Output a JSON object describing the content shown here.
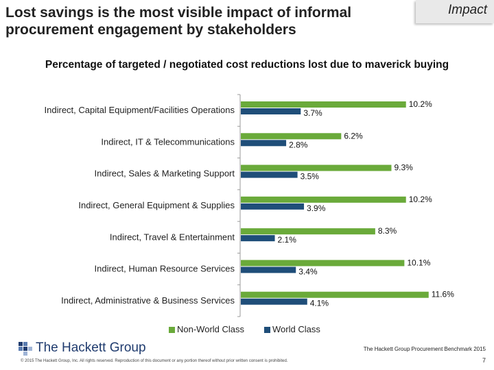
{
  "header": {
    "title": "Lost savings is the most visible impact of informal procurement engagement by stakeholders",
    "badge": "Impact"
  },
  "chart_data": {
    "type": "bar",
    "title": "Percentage of targeted / negotiated cost reductions lost due to maverick buying",
    "categories": [
      "Indirect, Capital Equipment/Facilities Operations",
      "Indirect, IT & Telecommunications",
      "Indirect, Sales & Marketing Support",
      "Indirect, General Equipment & Supplies",
      "Indirect, Travel & Entertainment",
      "Indirect, Human Resource Services",
      "Indirect, Administrative & Business Services"
    ],
    "series": [
      {
        "name": "Non-World Class",
        "color": "#6aaa3a",
        "values": [
          10.2,
          6.2,
          9.3,
          10.2,
          8.3,
          10.1,
          11.6
        ],
        "labels": [
          "10.2%",
          "6.2%",
          "9.3%",
          "10.2%",
          "8.3%",
          "10.1%",
          "11.6%"
        ]
      },
      {
        "name": "World Class",
        "color": "#1f4e79",
        "values": [
          3.7,
          2.8,
          3.5,
          3.9,
          2.1,
          3.4,
          4.1
        ],
        "labels": [
          "3.7%",
          "2.8%",
          "3.5%",
          "3.9%",
          "2.1%",
          "3.4%",
          "4.1%"
        ]
      }
    ],
    "orientation": "horizontal",
    "xlim": [
      0,
      12
    ],
    "grid": false,
    "legend_position": "bottom"
  },
  "footer": {
    "logo_text": "The Hackett Group",
    "source": "The Hackett Group Procurement Benchmark 2015",
    "page_number": "7",
    "copyright": "© 2015 The Hackett Group, Inc. All rights reserved. Reproduction of this document or any portion thereof without prior written consent is prohibited."
  }
}
